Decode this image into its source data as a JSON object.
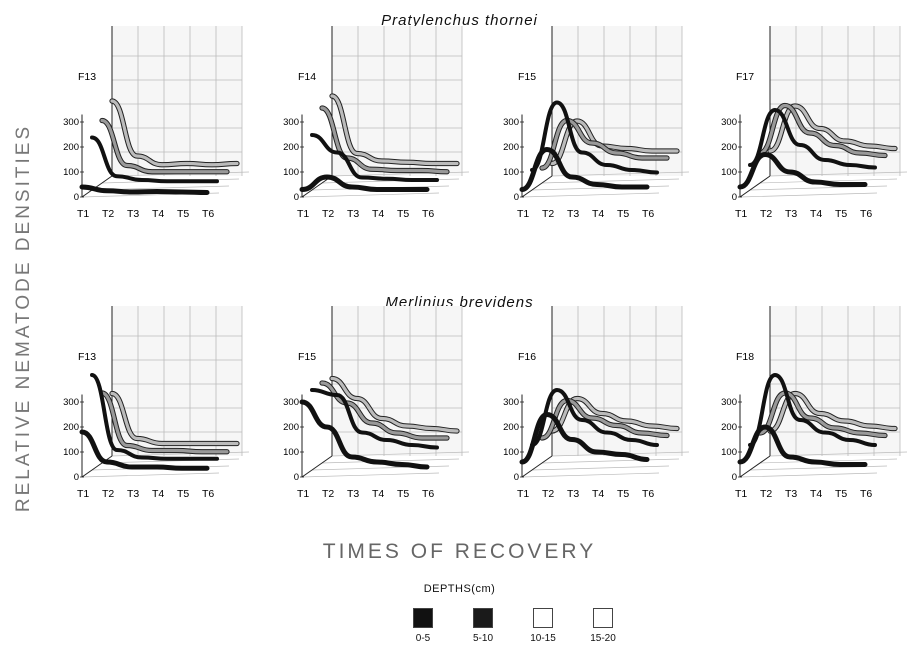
{
  "titles": {
    "top": "Pratylenchus  thornei",
    "bottom": "Merlinius  brevidens"
  },
  "ylabel": "RELATIVE  NEMATODE  DENSITIES",
  "xlabel": "TIMES  OF  RECOVERY",
  "legend": {
    "title": "DEPTHS(cm)",
    "items": [
      {
        "label": "0-5",
        "color": "#111111"
      },
      {
        "label": "5-10",
        "color": "#1a1a1a"
      },
      {
        "label": "10-15",
        "color": "#ffffff"
      },
      {
        "label": "15-20",
        "color": "#ffffff"
      }
    ]
  },
  "chart_data": [
    {
      "type": "line",
      "group": "Pratylenchus thornei",
      "panel": "F13",
      "categories": [
        "T1",
        "T2",
        "T3",
        "T4",
        "T5",
        "T6"
      ],
      "yticks": [
        0,
        100,
        200,
        300
      ],
      "series": [
        {
          "name": "0-5",
          "values": [
            40,
            25,
            20,
            22,
            20,
            18
          ]
        },
        {
          "name": "5-10",
          "values": [
            210,
            55,
            40,
            35,
            35,
            35
          ]
        },
        {
          "name": "10-15",
          "values": [
            250,
            70,
            45,
            45,
            45,
            45
          ]
        },
        {
          "name": "15-20",
          "values": [
            300,
            80,
            45,
            50,
            45,
            50
          ]
        }
      ]
    },
    {
      "type": "line",
      "group": "Pratylenchus thornei",
      "panel": "F14",
      "categories": [
        "T1",
        "T2",
        "T3",
        "T4",
        "T5",
        "T6"
      ],
      "yticks": [
        0,
        100,
        200,
        300
      ],
      "series": [
        {
          "name": "0-5",
          "values": [
            30,
            80,
            40,
            30,
            30,
            30
          ]
        },
        {
          "name": "5-10",
          "values": [
            220,
            150,
            50,
            45,
            40,
            40
          ]
        },
        {
          "name": "10-15",
          "values": [
            300,
            100,
            55,
            50,
            50,
            45
          ]
        },
        {
          "name": "15-20",
          "values": [
            320,
            90,
            60,
            55,
            50,
            50
          ]
        }
      ]
    },
    {
      "type": "line",
      "group": "Pratylenchus thornei",
      "panel": "F15",
      "categories": [
        "T1",
        "T2",
        "T3",
        "T4",
        "T5",
        "T6"
      ],
      "yticks": [
        0,
        100,
        200,
        300
      ],
      "series": [
        {
          "name": "0-5",
          "values": [
            30,
            190,
            80,
            50,
            40,
            40
          ]
        },
        {
          "name": "5-10",
          "values": [
            80,
            350,
            150,
            100,
            80,
            70
          ]
        },
        {
          "name": "10-15",
          "values": [
            60,
            250,
            160,
            120,
            100,
            100
          ]
        },
        {
          "name": "15-20",
          "values": [
            50,
            220,
            120,
            110,
            100,
            100
          ]
        }
      ]
    },
    {
      "type": "line",
      "group": "Pratylenchus thornei",
      "panel": "F17",
      "categories": [
        "T1",
        "T2",
        "T3",
        "T4",
        "T5",
        "T6"
      ],
      "yticks": [
        0,
        100,
        200,
        300
      ],
      "series": [
        {
          "name": "0-5",
          "values": [
            40,
            170,
            100,
            60,
            50,
            50
          ]
        },
        {
          "name": "5-10",
          "values": [
            100,
            320,
            180,
            120,
            100,
            90
          ]
        },
        {
          "name": "10-15",
          "values": [
            120,
            310,
            200,
            150,
            120,
            110
          ]
        },
        {
          "name": "15-20",
          "values": [
            100,
            280,
            190,
            140,
            120,
            110
          ]
        }
      ]
    },
    {
      "type": "line",
      "group": "Merlinius brevidens",
      "panel": "F13",
      "categories": [
        "T1",
        "T2",
        "T3",
        "T4",
        "T5",
        "T6"
      ],
      "yticks": [
        0,
        100,
        200,
        300
      ],
      "series": [
        {
          "name": "0-5",
          "values": [
            180,
            60,
            40,
            40,
            35,
            35
          ]
        },
        {
          "name": "5-10",
          "values": [
            380,
            80,
            50,
            45,
            45,
            45
          ]
        },
        {
          "name": "10-15",
          "values": [
            280,
            70,
            50,
            50,
            45,
            45
          ]
        },
        {
          "name": "15-20",
          "values": [
            250,
            70,
            50,
            50,
            50,
            50
          ]
        }
      ]
    },
    {
      "type": "line",
      "group": "Merlinius brevidens",
      "panel": "F15",
      "categories": [
        "T1",
        "T2",
        "T3",
        "T4",
        "T5",
        "T6"
      ],
      "yticks": [
        0,
        100,
        200,
        300
      ],
      "series": [
        {
          "name": "0-5",
          "values": [
            300,
            200,
            80,
            60,
            50,
            40
          ]
        },
        {
          "name": "5-10",
          "values": [
            320,
            300,
            150,
            120,
            100,
            90
          ]
        },
        {
          "name": "10-15",
          "values": [
            320,
            240,
            160,
            120,
            100,
            100
          ]
        },
        {
          "name": "15-20",
          "values": [
            310,
            230,
            150,
            120,
            110,
            100
          ]
        }
      ]
    },
    {
      "type": "line",
      "group": "Merlinius brevidens",
      "panel": "F16",
      "categories": [
        "T1",
        "T2",
        "T3",
        "T4",
        "T5",
        "T6"
      ],
      "yticks": [
        0,
        100,
        200,
        300
      ],
      "series": [
        {
          "name": "0-5",
          "values": [
            60,
            250,
            150,
            100,
            90,
            70
          ]
        },
        {
          "name": "5-10",
          "values": [
            100,
            320,
            200,
            150,
            120,
            100
          ]
        },
        {
          "name": "10-15",
          "values": [
            100,
            250,
            180,
            150,
            120,
            110
          ]
        },
        {
          "name": "15-20",
          "values": [
            100,
            230,
            170,
            140,
            120,
            110
          ]
        }
      ]
    },
    {
      "type": "line",
      "group": "Merlinius brevidens",
      "panel": "F18",
      "categories": [
        "T1",
        "T2",
        "T3",
        "T4",
        "T5",
        "T6"
      ],
      "yticks": [
        0,
        100,
        200,
        300
      ],
      "series": [
        {
          "name": "0-5",
          "values": [
            60,
            200,
            80,
            60,
            50,
            50
          ]
        },
        {
          "name": "5-10",
          "values": [
            100,
            380,
            200,
            150,
            120,
            100
          ]
        },
        {
          "name": "10-15",
          "values": [
            120,
            280,
            180,
            140,
            120,
            110
          ]
        },
        {
          "name": "15-20",
          "values": [
            100,
            250,
            170,
            140,
            120,
            110
          ]
        }
      ]
    }
  ]
}
